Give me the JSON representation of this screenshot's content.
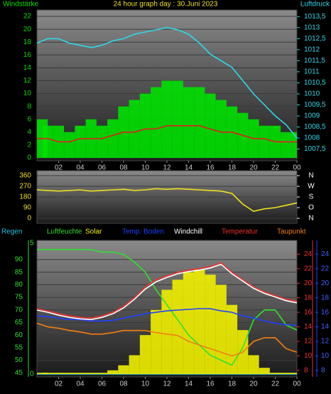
{
  "chart_data": [
    {
      "type": "bar",
      "title": "24 hour graph day : 30.Juni 2023",
      "x": [
        0,
        1,
        2,
        3,
        4,
        5,
        6,
        7,
        8,
        9,
        10,
        11,
        12,
        13,
        14,
        15,
        16,
        17,
        18,
        19,
        20,
        21,
        22,
        23,
        24
      ],
      "xlim": [
        0,
        24
      ],
      "xticks": [
        {
          "value": 2,
          "label": "02"
        },
        {
          "value": 4,
          "label": "04"
        },
        {
          "value": 6,
          "label": "06"
        },
        {
          "value": 8,
          "label": "08"
        },
        10,
        12,
        14,
        16,
        18,
        20,
        22,
        {
          "value": 24,
          "label": "00"
        }
      ],
      "ylim": [
        0,
        23
      ],
      "yticks": [
        0,
        2,
        4,
        6,
        8,
        10,
        12,
        14,
        16,
        18,
        20,
        22
      ],
      "y2lim": [
        1007.1,
        1013.8
      ],
      "y2ticks": [
        {
          "value": 1007.5,
          "label": "1007,5"
        },
        1008,
        {
          "value": 1008.5,
          "label": "1008,5"
        },
        1009,
        {
          "value": 1009.5,
          "label": "1009,5"
        },
        1010,
        {
          "value": 1010.5,
          "label": "1010,5"
        },
        1011,
        {
          "value": 1011.5,
          "label": "1011,5"
        },
        1012,
        {
          "value": 1012.5,
          "label": "1012,5"
        },
        1013,
        {
          "value": 1013.5,
          "label": "1013,5"
        }
      ],
      "grid": true,
      "series": [
        {
          "name": "Windstärke",
          "type": "bar",
          "color": "#00e000",
          "values": [
            6,
            5,
            5,
            4,
            5,
            6,
            5,
            6,
            8,
            9,
            10,
            11,
            12,
            12,
            11,
            11,
            10,
            9,
            8,
            7,
            6,
            5,
            5,
            4,
            4
          ]
        },
        {
          "type": "line",
          "color": "#e02020",
          "values": [
            3,
            3,
            2.5,
            2.5,
            3,
            3,
            3,
            3.5,
            4,
            4,
            4.5,
            4.5,
            5,
            5,
            5,
            5,
            4.5,
            4,
            4,
            3.5,
            3,
            3,
            2.5,
            2.5,
            2.5
          ]
        },
        {
          "name": "Luftdruck",
          "type": "line",
          "axis": "y2",
          "color": "#30d8e8",
          "values": [
            1012.3,
            1012.5,
            1012.5,
            1012.3,
            1012.2,
            1012.1,
            1012.2,
            1012.4,
            1012.5,
            1012.7,
            1012.8,
            1012.9,
            1013.0,
            1012.9,
            1012.7,
            1012.3,
            1011.8,
            1011.5,
            1011.2,
            1010.6,
            1010.0,
            1009.5,
            1009.0,
            1008.6,
            1008.0
          ]
        }
      ]
    },
    {
      "type": "line",
      "x": [
        0,
        1,
        2,
        3,
        4,
        5,
        6,
        7,
        8,
        9,
        10,
        11,
        12,
        13,
        14,
        15,
        16,
        17,
        18,
        19,
        20,
        21,
        22,
        23,
        24
      ],
      "xlim": [
        0,
        24
      ],
      "ylim": [
        0,
        360
      ],
      "yticks": [
        0,
        90,
        180,
        270,
        360
      ],
      "y2lim": [
        0,
        360
      ],
      "y2ticks": [
        {
          "value": 360,
          "label": "N"
        },
        {
          "value": 270,
          "label": "W"
        },
        {
          "value": 180,
          "label": "S"
        },
        {
          "value": 90,
          "label": "O"
        },
        {
          "value": 0,
          "label": "N"
        }
      ],
      "grid": true,
      "series": [
        {
          "type": "line",
          "color": "#f0e020",
          "values": [
            240,
            235,
            230,
            235,
            240,
            230,
            235,
            240,
            245,
            235,
            240,
            250,
            245,
            250,
            245,
            240,
            235,
            230,
            210,
            120,
            60,
            80,
            90,
            110,
            130
          ]
        }
      ]
    },
    {
      "type": "line",
      "x": [
        0,
        1,
        2,
        3,
        4,
        5,
        6,
        7,
        8,
        9,
        10,
        11,
        12,
        13,
        14,
        15,
        16,
        17,
        18,
        19,
        20,
        21,
        22,
        23,
        24
      ],
      "xlim": [
        0,
        24
      ],
      "xticks": [
        {
          "value": 2,
          "label": "02"
        },
        {
          "value": 4,
          "label": "04"
        },
        {
          "value": 6,
          "label": "06"
        },
        {
          "value": 8,
          "label": "08"
        },
        10,
        12,
        14,
        16,
        18,
        20,
        22,
        {
          "value": 24,
          "label": "00"
        }
      ],
      "ylim": [
        44.5,
        96.5
      ],
      "yticks": [
        45,
        50,
        55,
        60,
        65,
        70,
        75,
        80,
        85,
        90
      ],
      "y2lim": [
        7.5,
        25.5
      ],
      "y2ticks": [
        8,
        10,
        12,
        14,
        16,
        18,
        20,
        22,
        24
      ],
      "y3lim": [
        0,
        5
      ],
      "y3ticks": [
        0,
        5
      ],
      "grid": true,
      "series": [
        {
          "name": "Regen",
          "type": "line",
          "axis": "y3",
          "color": "#20c0e0",
          "values": [
            0,
            0,
            0,
            0,
            0,
            0,
            0,
            0,
            0,
            0,
            0,
            0,
            0,
            0,
            0,
            0,
            0,
            0,
            0,
            0,
            0,
            0,
            0,
            0,
            0
          ]
        },
        {
          "name": "Solar",
          "type": "bar",
          "color": "#f0f000",
          "values": [
            45,
            45,
            45,
            45,
            45,
            45,
            45,
            46,
            48,
            52,
            60,
            70,
            78,
            82,
            85,
            86,
            84,
            80,
            72,
            62,
            52,
            47,
            45,
            45,
            45
          ]
        },
        {
          "name": "Luftfeuchte",
          "type": "line",
          "color": "#30e030",
          "values": [
            94,
            94,
            94,
            94,
            94,
            94,
            93,
            93,
            92,
            89,
            85,
            78,
            72,
            66,
            60,
            56,
            52,
            50,
            48,
            55,
            66,
            70,
            70,
            64,
            62
          ]
        },
        {
          "name": "Temp. Boden",
          "type": "line",
          "axis": "y2",
          "color": "#2040ff",
          "values": [
            15.5,
            15.4,
            15.2,
            15,
            15,
            14.8,
            14.8,
            14.9,
            15.2,
            15.5,
            15.8,
            16,
            16.2,
            16.3,
            16.4,
            16.5,
            16.5,
            16.2,
            16,
            15.5,
            15.2,
            14.8,
            14.5,
            14.3,
            14.2
          ]
        },
        {
          "name": "Windchill",
          "type": "line",
          "axis": "y2",
          "color": "#ffffff",
          "values": [
            16.3,
            16,
            15.6,
            15.3,
            15.1,
            15,
            15.3,
            15.8,
            16.6,
            17.8,
            19.2,
            20.2,
            20.8,
            21.3,
            21.6,
            21.8,
            22.1,
            22.6,
            21.3,
            20.3,
            19.3,
            18.6,
            18.1,
            17.6,
            17.3
          ]
        },
        {
          "name": "Temperatur",
          "type": "line",
          "axis": "y2",
          "color": "#f03030",
          "values": [
            16.5,
            16.2,
            15.8,
            15.5,
            15.3,
            15.2,
            15.5,
            16,
            16.8,
            18,
            19.5,
            20.5,
            21,
            21.5,
            21.8,
            22,
            22.3,
            22.8,
            21.5,
            20.5,
            19.5,
            18.8,
            18.3,
            17.8,
            17.5
          ]
        },
        {
          "name": "Taupunkt",
          "type": "line",
          "axis": "y2",
          "color": "#f08010",
          "values": [
            14.5,
            14,
            13.8,
            13.5,
            13.3,
            13,
            13,
            13.2,
            13.5,
            13.5,
            13.5,
            13.2,
            13,
            12.8,
            12,
            11.5,
            11,
            10.5,
            10,
            10.5,
            12,
            12.5,
            12.5,
            11,
            10.5
          ]
        }
      ]
    }
  ]
}
